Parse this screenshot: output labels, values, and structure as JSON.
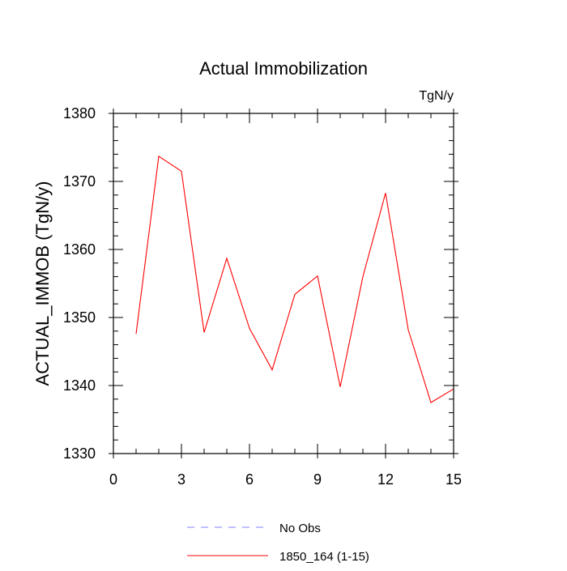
{
  "chart_data": {
    "type": "line",
    "title": "Actual Immobilization",
    "units_label": "TgN/y",
    "xlabel": "",
    "ylabel": "ACTUAL_IMMOB  (TgN/y)",
    "xlim": [
      0,
      15
    ],
    "ylim": [
      1330,
      1380
    ],
    "x_ticks": [
      0,
      3,
      6,
      9,
      12,
      15
    ],
    "y_ticks": [
      1330,
      1340,
      1350,
      1360,
      1370,
      1380
    ],
    "grid": false,
    "legend_position": "bottom",
    "series": [
      {
        "name": "No Obs",
        "color": "#8080ff",
        "dash": "dashed",
        "x": [],
        "y": []
      },
      {
        "name": "1850_164 (1-15)",
        "color": "#ff0000",
        "dash": "solid",
        "x": [
          1,
          2,
          3,
          4,
          5,
          6,
          7,
          8,
          9,
          10,
          11,
          12,
          13,
          14,
          15
        ],
        "y": [
          1347.6,
          1373.7,
          1371.5,
          1347.8,
          1358.7,
          1348.4,
          1342.3,
          1353.4,
          1356.1,
          1339.8,
          1356.0,
          1368.3,
          1348.2,
          1337.5,
          1339.5
        ]
      }
    ]
  }
}
